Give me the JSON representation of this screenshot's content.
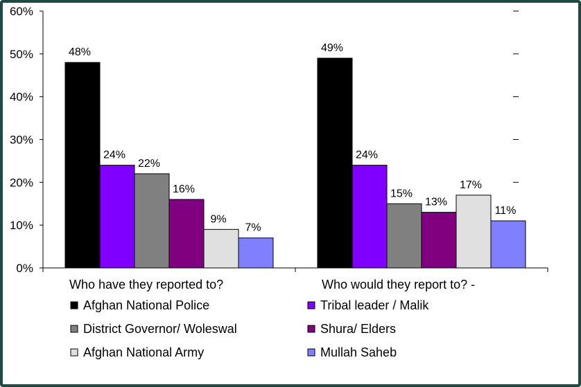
{
  "chart_data": {
    "type": "bar",
    "title": "",
    "xlabel": "",
    "ylabel": "",
    "ylim": [
      0,
      60
    ],
    "y_ticks": [
      "0%",
      "10%",
      "20%",
      "30%",
      "40%",
      "50%",
      "60%"
    ],
    "categories": [
      "Who have they reported to?",
      "Who would they report to? -"
    ],
    "series": [
      {
        "name": "Afghan National Police",
        "color": "#000000",
        "values": [
          48,
          49
        ],
        "labels": [
          "48%",
          "49%"
        ]
      },
      {
        "name": "Tribal leader / Malik",
        "color": "#8000ff",
        "values": [
          24,
          24
        ],
        "labels": [
          "24%",
          "24%"
        ]
      },
      {
        "name": "District Governor/ Woleswal",
        "color": "#808080",
        "values": [
          22,
          15
        ],
        "labels": [
          "22%",
          "15%"
        ]
      },
      {
        "name": "Shura/ Elders",
        "color": "#800080",
        "values": [
          16,
          13
        ],
        "labels": [
          "16%",
          "13%"
        ]
      },
      {
        "name": "Afghan National Army",
        "color": "#e0e0e0",
        "values": [
          9,
          17
        ],
        "labels": [
          "9%",
          "17%"
        ]
      },
      {
        "name": "Mullah Saheb",
        "color": "#8080ff",
        "values": [
          7,
          11
        ],
        "labels": [
          "7%",
          "11%"
        ]
      }
    ],
    "legend_placement": "bottom",
    "grid": false
  }
}
